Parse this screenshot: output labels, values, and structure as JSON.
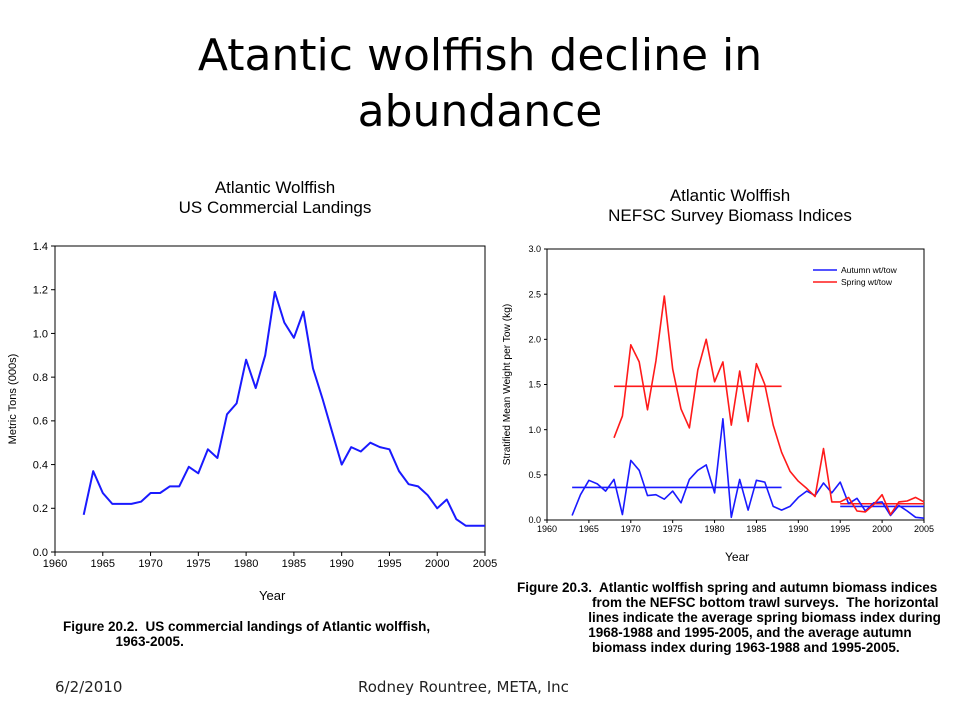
{
  "slide": {
    "title_line1": "Atantic wolffish decline in",
    "title_line2": "abundance"
  },
  "footer": {
    "date": "6/2/2010",
    "author": "Rodney Rountree,  META, Inc"
  },
  "colors": {
    "blue": "#1a1aff",
    "red": "#ff1a1a",
    "axis": "#000000"
  },
  "chart_data": [
    {
      "type": "line",
      "title": [
        "Atlantic Wolffish",
        "US Commercial Landings"
      ],
      "xlabel": "Year",
      "ylabel": "Metric Tons (000s)",
      "xlim": [
        1960,
        2005
      ],
      "ylim": [
        0,
        1.4
      ],
      "xticks": [
        1960,
        1965,
        1970,
        1975,
        1980,
        1985,
        1990,
        1995,
        2000,
        2005
      ],
      "yticks": [
        0.0,
        0.2,
        0.4,
        0.6,
        0.8,
        1.0,
        1.2,
        1.4
      ],
      "ytick_labels": [
        "0.0",
        "0.2",
        "0.4",
        "0.6",
        "0.8",
        "1.0",
        "1.2",
        "1.4"
      ],
      "grid": false,
      "series": [
        {
          "color": "#1a1aff",
          "x": [
            1963,
            1964,
            1965,
            1966,
            1967,
            1968,
            1969,
            1970,
            1971,
            1972,
            1973,
            1974,
            1975,
            1976,
            1977,
            1978,
            1979,
            1980,
            1981,
            1982,
            1983,
            1984,
            1985,
            1986,
            1987,
            1988,
            1989,
            1990,
            1991,
            1992,
            1993,
            1994,
            1995,
            1996,
            1997,
            1998,
            1999,
            2000,
            2001,
            2002,
            2003,
            2004,
            2005
          ],
          "y": [
            0.17,
            0.37,
            0.27,
            0.22,
            0.22,
            0.22,
            0.23,
            0.27,
            0.27,
            0.3,
            0.3,
            0.39,
            0.36,
            0.47,
            0.43,
            0.63,
            0.68,
            0.88,
            0.75,
            0.9,
            1.19,
            1.05,
            0.98,
            1.1,
            0.84,
            0.7,
            0.55,
            0.4,
            0.48,
            0.46,
            0.5,
            0.48,
            0.47,
            0.37,
            0.31,
            0.3,
            0.26,
            0.2,
            0.24,
            0.15,
            0.12,
            0.12,
            0.12
          ]
        }
      ],
      "caption": [
        "Figure 20.2.  US commercial landings of Atlantic wolffish,",
        "              1963-2005."
      ]
    },
    {
      "type": "line",
      "title": [
        "Atlantic Wolffish",
        "NEFSC Survey Biomass Indices"
      ],
      "xlabel": "Year",
      "ylabel": "Stratified Mean Weight per Tow (kg)",
      "xlim": [
        1960,
        2005
      ],
      "ylim": [
        0,
        3.0
      ],
      "xticks": [
        1960,
        1965,
        1970,
        1975,
        1980,
        1985,
        1990,
        1995,
        2000,
        2005
      ],
      "yticks": [
        0.0,
        0.5,
        1.0,
        1.5,
        2.0,
        2.5,
        3.0
      ],
      "ytick_labels": [
        "0.0",
        "0.5",
        "1.0",
        "1.5",
        "2.0",
        "2.5",
        "3.0"
      ],
      "grid": false,
      "legend_position": "top-right",
      "series": [
        {
          "name": "Autumn wt/tow",
          "color": "#1a1aff",
          "x": [
            1963,
            1964,
            1965,
            1966,
            1967,
            1968,
            1969,
            1970,
            1971,
            1972,
            1973,
            1974,
            1975,
            1976,
            1977,
            1978,
            1979,
            1980,
            1981,
            1982,
            1983,
            1984,
            1985,
            1986,
            1987,
            1988,
            1989,
            1990,
            1991,
            1992,
            1993,
            1994,
            1995,
            1996,
            1997,
            1998,
            1999,
            2000,
            2001,
            2002,
            2003,
            2004,
            2005
          ],
          "y": [
            0.05,
            0.28,
            0.44,
            0.4,
            0.32,
            0.45,
            0.06,
            0.66,
            0.55,
            0.27,
            0.28,
            0.23,
            0.32,
            0.19,
            0.45,
            0.55,
            0.61,
            0.3,
            1.12,
            0.03,
            0.45,
            0.11,
            0.44,
            0.42,
            0.15,
            0.11,
            0.15,
            0.25,
            0.32,
            0.27,
            0.41,
            0.3,
            0.42,
            0.18,
            0.24,
            0.1,
            0.19,
            0.2,
            0.05,
            0.16,
            0.1,
            0.03,
            0.02
          ]
        },
        {
          "name": "Spring wt/tow",
          "color": "#ff1a1a",
          "x": [
            1968,
            1969,
            1970,
            1971,
            1972,
            1973,
            1974,
            1975,
            1976,
            1977,
            1978,
            1979,
            1980,
            1981,
            1982,
            1983,
            1984,
            1985,
            1986,
            1987,
            1988,
            1989,
            1990,
            1991,
            1992,
            1993,
            1994,
            1995,
            1996,
            1997,
            1998,
            1999,
            2000,
            2001,
            2002,
            2003,
            2004,
            2005
          ],
          "y": [
            0.91,
            1.15,
            1.94,
            1.75,
            1.22,
            1.76,
            2.48,
            1.67,
            1.23,
            1.02,
            1.66,
            2.0,
            1.53,
            1.75,
            1.05,
            1.65,
            1.09,
            1.73,
            1.5,
            1.05,
            0.75,
            0.54,
            0.43,
            0.35,
            0.26,
            0.79,
            0.2,
            0.2,
            0.25,
            0.1,
            0.09,
            0.17,
            0.28,
            0.06,
            0.2,
            0.21,
            0.25,
            0.2
          ]
        }
      ],
      "reference_lines": [
        {
          "series": "Spring wt/tow",
          "x": [
            1968,
            1988
          ],
          "y": 1.48
        },
        {
          "series": "Spring wt/tow",
          "x": [
            1995,
            2005
          ],
          "y": 0.18
        },
        {
          "series": "Autumn wt/tow",
          "x": [
            1963,
            1988
          ],
          "y": 0.36
        },
        {
          "series": "Autumn wt/tow",
          "x": [
            1995,
            2005
          ],
          "y": 0.15
        }
      ],
      "caption": [
        "Figure 20.3.  Atlantic wolffish spring and autumn biomass indices",
        "                    from the NEFSC bottom trawl surveys.  The horizontal",
        "                   lines indicate the average spring biomass index during",
        "                   1968-1988 and 1995-2005, and the average autumn",
        "                    biomass index during 1963-1988 and 1995-2005."
      ]
    }
  ]
}
